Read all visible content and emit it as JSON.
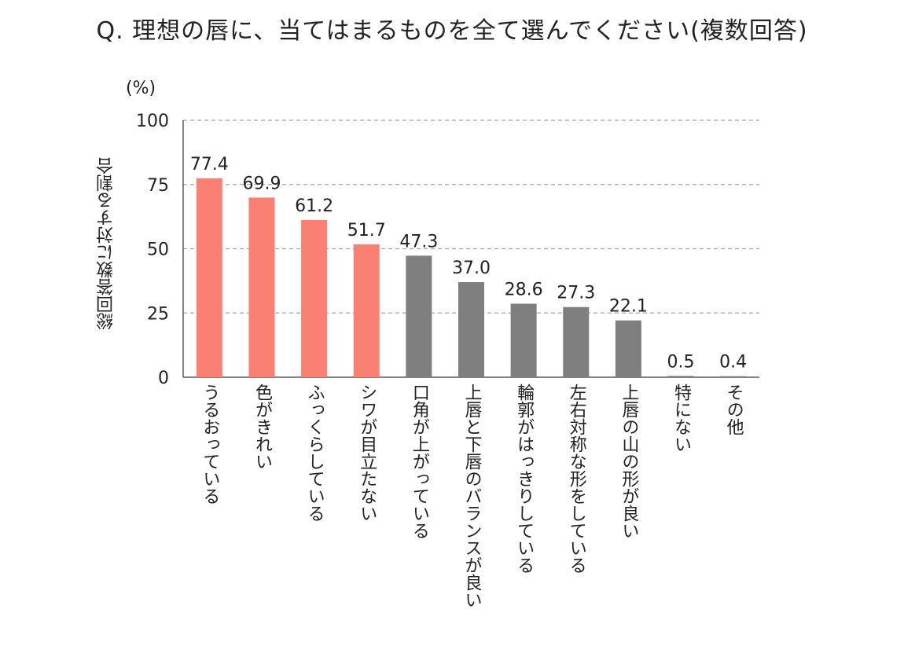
{
  "title": "Q. 理想の唇に、当てはまるものを全て選んでください(複数回答)",
  "chart_data": {
    "type": "bar",
    "title": "Q. 理想の唇に、当てはまるものを全て選んでください(複数回答)",
    "ylabel": "総回答数に対する割合",
    "unit_label": "(%)",
    "xlabel": "",
    "ylim": [
      0,
      100
    ],
    "yticks": [
      "0",
      "25",
      "50",
      "75",
      "100"
    ],
    "grid": true,
    "categories": [
      "うるおっている",
      "色がきれい",
      "ふっくらしている",
      "シワが目立たない",
      "口角が上がっている",
      "上唇と下唇のバランスが良い",
      "輪郭がはっきりしている",
      "左右対称な形をしている",
      "上唇の山の形が良い",
      "特にない",
      "その他"
    ],
    "values": [
      77.4,
      69.9,
      61.2,
      51.7,
      47.3,
      37.0,
      28.6,
      27.3,
      22.1,
      0.5,
      0.4
    ],
    "value_labels": [
      "77.4",
      "69.9",
      "61.2",
      "51.7",
      "47.3",
      "37.0",
      "28.6",
      "27.3",
      "22.1",
      "0.5",
      "0.4"
    ],
    "highlight_count": 4,
    "colors": {
      "highlight": "#f98072",
      "normal": "#7f7f7f",
      "grid": "#a6a6a6",
      "axis": "#595959"
    }
  }
}
